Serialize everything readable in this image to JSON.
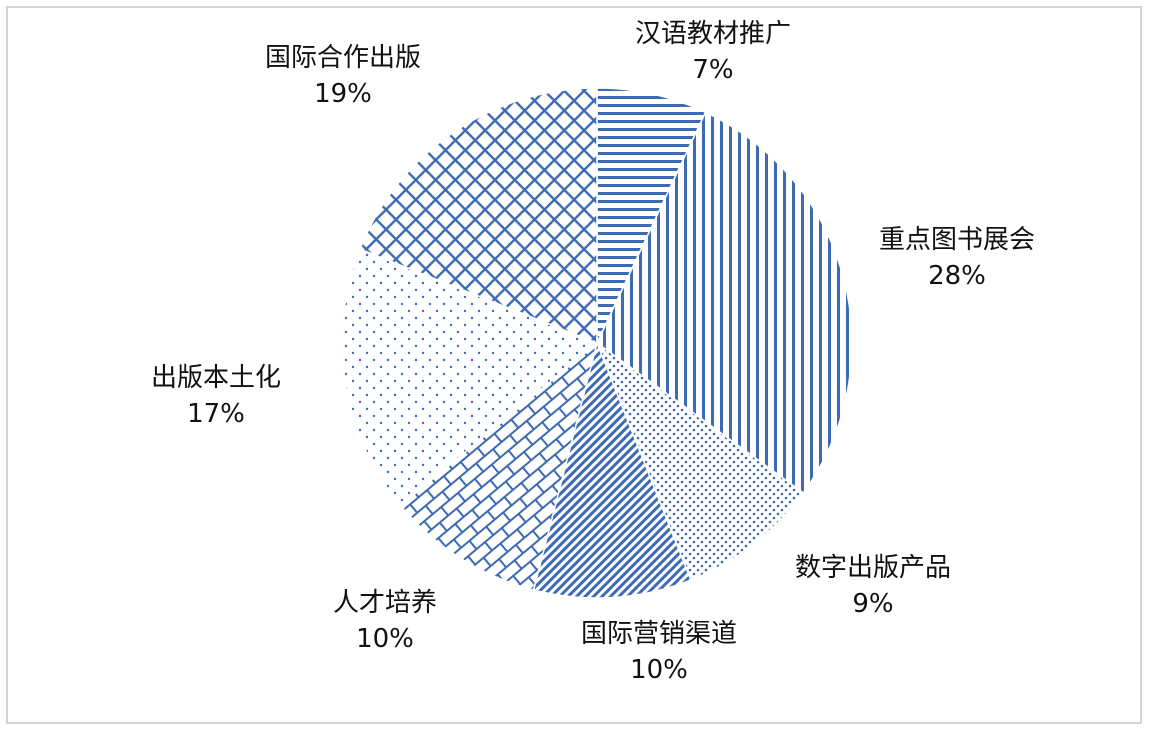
{
  "chart_data": {
    "type": "pie",
    "title": "",
    "start": "top",
    "direction": "clockwise",
    "slices": [
      {
        "label": "汉语教材推广",
        "value": 7,
        "percent_label": "7%",
        "pattern": "horizontal-lines"
      },
      {
        "label": "重点图书展会",
        "value": 28,
        "percent_label": "28%",
        "pattern": "vertical-lines"
      },
      {
        "label": "数字出版产品",
        "value": 9,
        "percent_label": "9%",
        "pattern": "dots"
      },
      {
        "label": "国际营销渠道",
        "value": 10,
        "percent_label": "10%",
        "pattern": "diagonal-lines"
      },
      {
        "label": "人才培养",
        "value": 10,
        "percent_label": "10%",
        "pattern": "brick"
      },
      {
        "label": "出版本土化",
        "value": 17,
        "percent_label": "17%",
        "pattern": "sparse-dots"
      },
      {
        "label": "国际合作出版",
        "value": 19,
        "percent_label": "19%",
        "pattern": "crosshatch"
      }
    ],
    "colors": {
      "pattern": "#3d6bb3",
      "background": "#ffffff",
      "frame": "#d4d4d4",
      "text": "#111111"
    }
  }
}
